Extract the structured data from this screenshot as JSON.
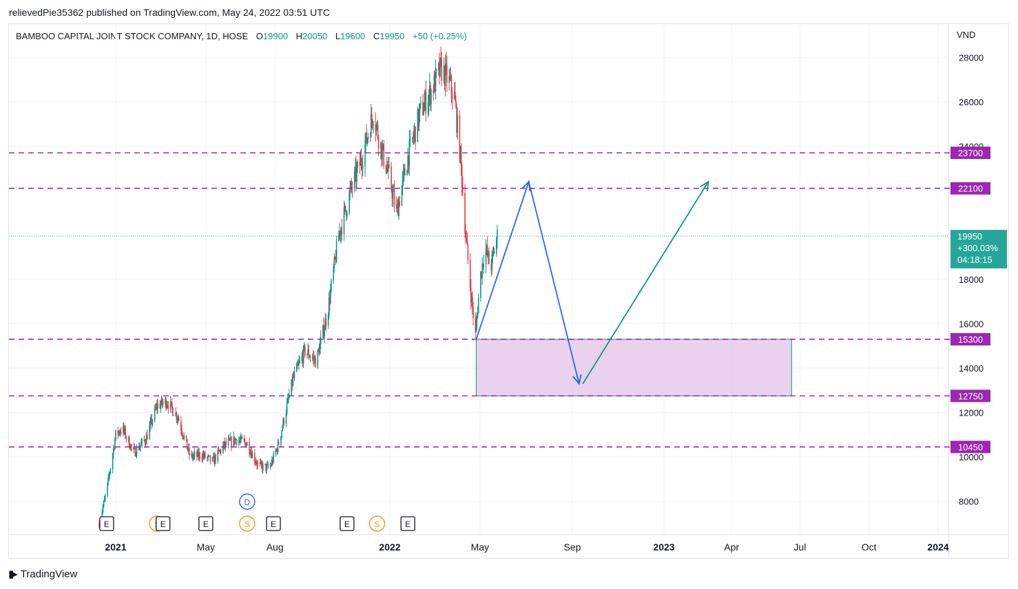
{
  "publish_line": "relievedPie35362 published on TradingView.com, May 24, 2022 03:51 UTC",
  "footer": {
    "brand": "TradingView",
    "logo_icon": "tradingview-logo-icon"
  },
  "colors": {
    "up": "#089981",
    "down": "#f23645",
    "level_line": "#9c27b0",
    "level_badge": "#9c27b0",
    "zone_fill": "#e1bee7",
    "zone_border": "#089981",
    "blue_arrow": "#2962ff",
    "green_arrow": "#089981",
    "last_price_badge": "#26a69a"
  },
  "chart_data": {
    "type": "candlestick",
    "title": "BAMBOO CAPITAL JOINT STOCK COMPANY, 1D, HOSE",
    "ohlc": {
      "open_label": "O",
      "open": "19900",
      "high_label": "H",
      "high": "20050",
      "low_label": "L",
      "low": "19600",
      "close_label": "C",
      "close": "19950",
      "change": "+50 (+0.25%)"
    },
    "currency": "VND",
    "ylim": [
      6500,
      29500
    ],
    "y_ticks": [
      "8000",
      "10000",
      "12000",
      "14000",
      "16000",
      "18000",
      "24000",
      "26000",
      "28000"
    ],
    "x_ticks": [
      "2021",
      "May",
      "Aug",
      "2022",
      "May",
      "Sep",
      "2023",
      "Apr",
      "Jul",
      "Oct",
      "2024"
    ],
    "grid": true,
    "price_path": [
      [
        "2020-12-10",
        7000
      ],
      [
        "2020-12-20",
        8500
      ],
      [
        "2021-01-01",
        11000
      ],
      [
        "2021-01-10",
        11300
      ],
      [
        "2021-01-25",
        10200
      ],
      [
        "2021-02-10",
        10800
      ],
      [
        "2021-02-25",
        12300
      ],
      [
        "2021-03-10",
        12500
      ],
      [
        "2021-03-25",
        11800
      ],
      [
        "2021-04-10",
        10000
      ],
      [
        "2021-04-25",
        10100
      ],
      [
        "2021-05-10",
        9800
      ],
      [
        "2021-05-25",
        10500
      ],
      [
        "2021-06-10",
        10800
      ],
      [
        "2021-06-25",
        10600
      ],
      [
        "2021-07-10",
        9600
      ],
      [
        "2021-07-25",
        9500
      ],
      [
        "2021-08-05",
        10500
      ],
      [
        "2021-08-15",
        12000
      ],
      [
        "2021-08-25",
        13500
      ],
      [
        "2021-09-10",
        14800
      ],
      [
        "2021-09-25",
        14300
      ],
      [
        "2021-10-10",
        16500
      ],
      [
        "2021-10-25",
        20000
      ],
      [
        "2021-11-10",
        22000
      ],
      [
        "2021-11-25",
        23500
      ],
      [
        "2021-12-10",
        25500
      ],
      [
        "2021-12-20",
        24000
      ],
      [
        "2022-01-01",
        22500
      ],
      [
        "2022-01-10",
        21000
      ],
      [
        "2022-01-25",
        23500
      ],
      [
        "2022-02-10",
        25500
      ],
      [
        "2022-02-25",
        26500
      ],
      [
        "2022-03-10",
        27500
      ],
      [
        "2022-03-20",
        27000
      ],
      [
        "2022-03-28",
        26200
      ],
      [
        "2022-04-05",
        23500
      ],
      [
        "2022-04-12",
        20000
      ],
      [
        "2022-04-20",
        17000
      ],
      [
        "2022-04-25",
        15500
      ],
      [
        "2022-05-01",
        18000
      ],
      [
        "2022-05-08",
        19500
      ],
      [
        "2022-05-15",
        18500
      ],
      [
        "2022-05-24",
        19950
      ]
    ],
    "levels": [
      {
        "label": "23700",
        "value": 23700
      },
      {
        "label": "22100",
        "value": 22100
      },
      {
        "label": "15300",
        "value": 15300
      },
      {
        "label": "12750",
        "value": 12750
      },
      {
        "label": "10450",
        "value": 10450
      }
    ],
    "last_price": {
      "value": 19950,
      "label": "19950",
      "change_label": "+300.03%",
      "countdown": "04:18:15"
    },
    "zone": {
      "x_start": "2022-04-26",
      "x_end": "2023-06-20",
      "y_low": 12750,
      "y_high": 15300
    },
    "projection_blue": [
      [
        "2022-04-26",
        15300
      ],
      [
        "2022-07-05",
        22400
      ],
      [
        "2022-09-10",
        13300
      ]
    ],
    "projection_green": [
      [
        "2022-09-15",
        13300
      ],
      [
        "2023-03-01",
        22400
      ]
    ],
    "events": [
      {
        "label": "E",
        "date": "2020-12-20",
        "kind": "earnings"
      },
      {
        "label": "S",
        "date": "2021-02-25",
        "kind": "split"
      },
      {
        "label": "E",
        "date": "2021-03-05",
        "kind": "earnings"
      },
      {
        "label": "E",
        "date": "2021-05-01",
        "kind": "earnings"
      },
      {
        "label": "D",
        "date": "2021-06-25",
        "kind": "dividend"
      },
      {
        "label": "S",
        "date": "2021-06-25",
        "kind": "split"
      },
      {
        "label": "E",
        "date": "2021-07-30",
        "kind": "earnings"
      },
      {
        "label": "E",
        "date": "2021-11-05",
        "kind": "earnings"
      },
      {
        "label": "S",
        "date": "2021-12-15",
        "kind": "split"
      },
      {
        "label": "E",
        "date": "2022-01-25",
        "kind": "earnings"
      }
    ]
  }
}
